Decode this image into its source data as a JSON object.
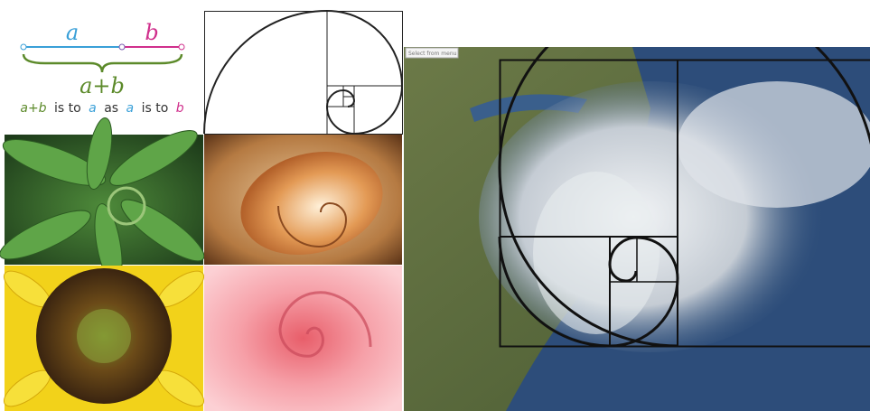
{
  "formula": {
    "a": "a",
    "b": "b",
    "sum": "a+b",
    "caption": [
      "a+b",
      "is to",
      "a",
      "as",
      "a",
      "is to",
      "b"
    ]
  },
  "map": {
    "menu": "Select from menu"
  }
}
